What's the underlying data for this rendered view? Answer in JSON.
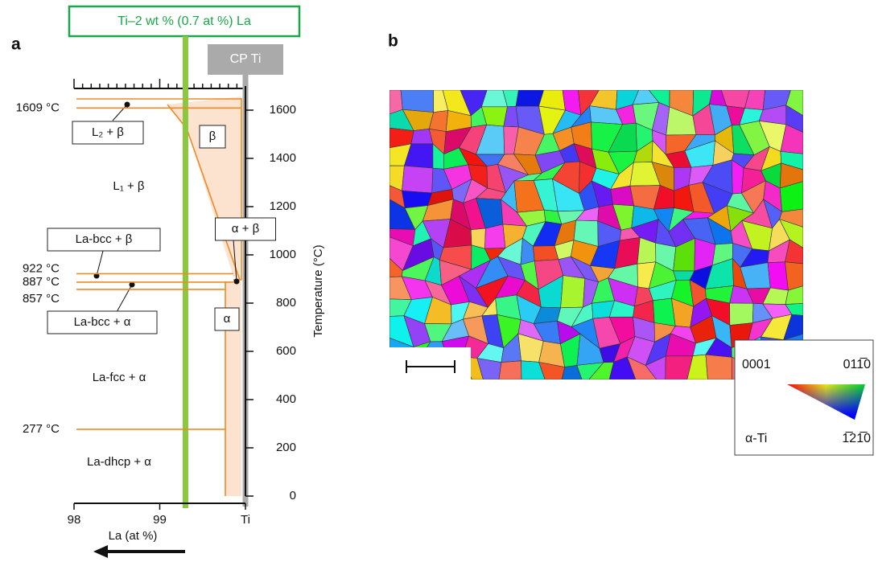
{
  "chart_data": {
    "type": "phase",
    "panel_label": "a",
    "composition_label": "Ti–2 wt % (0.7 at %) La",
    "composition": 99.3,
    "reference_label": "CP Ti",
    "reference": 100,
    "xlabel": "La (at %)",
    "ylabel": "Temperature (°C)",
    "xlim": [
      98,
      100
    ],
    "xticks": [
      98,
      99,
      {
        "value": 100,
        "label": "Ti"
      }
    ],
    "ylim": [
      0,
      1700
    ],
    "yticks": [
      0,
      200,
      400,
      600,
      800,
      1000,
      1200,
      1400,
      1600
    ],
    "isotherms": [
      {
        "value": 1609,
        "label": "1609 °C"
      },
      {
        "value": 922,
        "label": "922 °C"
      },
      {
        "value": 887,
        "label": "887 °C"
      },
      {
        "value": 857,
        "label": "857 °C"
      },
      {
        "value": 277,
        "label": "277 °C"
      }
    ],
    "regions": [
      "L₂ + β",
      "β",
      "L₁ + β",
      "α + β",
      "La-bcc + β",
      "La-bcc + α",
      "α",
      "La-fcc + α",
      "La-dhcp + α"
    ]
  },
  "panel_b": {
    "panel_label": "b",
    "key": {
      "corners": [
        "0001",
        "011̅0",
        "1̅21̅0"
      ],
      "phase": "α-Ti"
    }
  }
}
